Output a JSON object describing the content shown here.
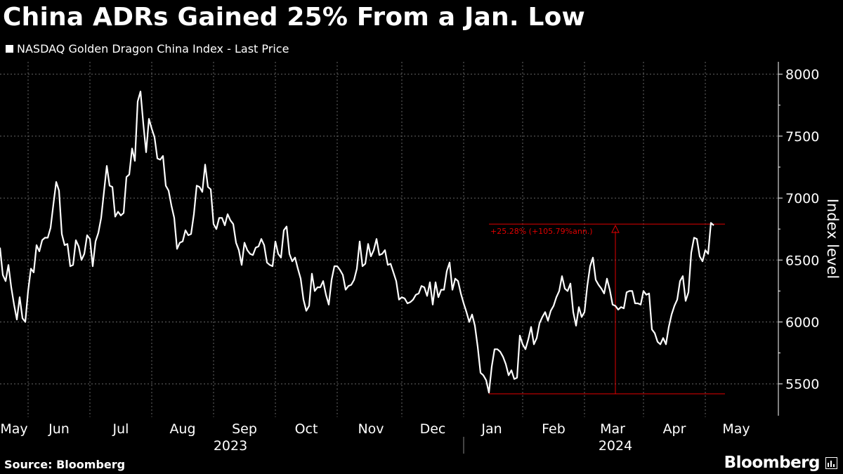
{
  "header": {
    "title": "China ADRs Gained 25% From a Jan. Low",
    "legend_label": "NASDAQ Golden Dragon China Index - Last Price"
  },
  "footer": {
    "source": "Source: Bloomberg",
    "brand": "Bloomberg"
  },
  "colors": {
    "background": "#000000",
    "line": "#ffffff",
    "annotation": "#e00000",
    "grid": "#666666"
  },
  "chart_data": {
    "type": "line",
    "title": "China ADRs Gained 25% From a Jan. Low",
    "ylabel": "Index level",
    "xlabel": "",
    "ylim": [
      5300,
      8100
    ],
    "xlim": [
      0,
      270
    ],
    "yticks": [
      5500,
      6000,
      6500,
      7000,
      7500,
      8000
    ],
    "grid": true,
    "legend": "top-left",
    "x_month_labels": [
      {
        "label": "May",
        "x": 5
      },
      {
        "label": "Jun",
        "x": 21
      },
      {
        "label": "Jul",
        "x": 43
      },
      {
        "label": "Aug",
        "x": 65
      },
      {
        "label": "Sep",
        "x": 87
      },
      {
        "label": "Oct",
        "x": 109
      },
      {
        "label": "Nov",
        "x": 132
      },
      {
        "label": "Dec",
        "x": 154
      },
      {
        "label": "Jan",
        "x": 175
      },
      {
        "label": "Feb",
        "x": 197
      },
      {
        "label": "Mar",
        "x": 218
      },
      {
        "label": "Apr",
        "x": 240
      },
      {
        "label": "May",
        "x": 262
      }
    ],
    "x_month_boundaries": [
      10,
      32,
      54,
      76,
      98,
      120,
      143,
      165,
      186,
      208,
      229,
      251
    ],
    "x_year_labels": [
      {
        "label": "2023",
        "x": 82
      },
      {
        "label": "2024",
        "x": 219
      }
    ],
    "x_year_boundary": 165,
    "series": [
      {
        "name": "NASDAQ Golden Dragon China Index - Last Price",
        "points": [
          [
            0,
            6600
          ],
          [
            1,
            6380
          ],
          [
            2,
            6330
          ],
          [
            3,
            6460
          ],
          [
            4,
            6280
          ],
          [
            5,
            6140
          ],
          [
            6,
            6020
          ],
          [
            7,
            6200
          ],
          [
            8,
            6030
          ],
          [
            9,
            6000
          ],
          [
            10,
            6250
          ],
          [
            11,
            6430
          ],
          [
            12,
            6400
          ],
          [
            13,
            6620
          ],
          [
            14,
            6570
          ],
          [
            15,
            6660
          ],
          [
            16,
            6680
          ],
          [
            17,
            6680
          ],
          [
            18,
            6760
          ],
          [
            19,
            6950
          ],
          [
            20,
            7130
          ],
          [
            21,
            7060
          ],
          [
            22,
            6710
          ],
          [
            23,
            6620
          ],
          [
            24,
            6630
          ],
          [
            25,
            6450
          ],
          [
            26,
            6460
          ],
          [
            27,
            6660
          ],
          [
            28,
            6610
          ],
          [
            29,
            6500
          ],
          [
            30,
            6550
          ],
          [
            31,
            6700
          ],
          [
            32,
            6670
          ],
          [
            33,
            6450
          ],
          [
            34,
            6650
          ],
          [
            35,
            6720
          ],
          [
            36,
            6840
          ],
          [
            37,
            7050
          ],
          [
            38,
            7260
          ],
          [
            39,
            7100
          ],
          [
            40,
            7090
          ],
          [
            41,
            6850
          ],
          [
            42,
            6890
          ],
          [
            43,
            6860
          ],
          [
            44,
            6880
          ],
          [
            45,
            7170
          ],
          [
            46,
            7190
          ],
          [
            47,
            7400
          ],
          [
            48,
            7300
          ],
          [
            49,
            7780
          ],
          [
            50,
            7860
          ],
          [
            51,
            7600
          ],
          [
            52,
            7370
          ],
          [
            53,
            7640
          ],
          [
            54,
            7560
          ],
          [
            55,
            7490
          ],
          [
            56,
            7320
          ],
          [
            57,
            7310
          ],
          [
            58,
            7340
          ],
          [
            59,
            7100
          ],
          [
            60,
            7060
          ],
          [
            61,
            6940
          ],
          [
            62,
            6840
          ],
          [
            63,
            6590
          ],
          [
            64,
            6640
          ],
          [
            65,
            6650
          ],
          [
            66,
            6740
          ],
          [
            67,
            6700
          ],
          [
            68,
            6710
          ],
          [
            69,
            6870
          ],
          [
            70,
            7100
          ],
          [
            71,
            7090
          ],
          [
            72,
            7050
          ],
          [
            73,
            7270
          ],
          [
            74,
            7090
          ],
          [
            75,
            7070
          ],
          [
            76,
            6790
          ],
          [
            77,
            6750
          ],
          [
            78,
            6840
          ],
          [
            79,
            6840
          ],
          [
            80,
            6780
          ],
          [
            81,
            6870
          ],
          [
            82,
            6820
          ],
          [
            83,
            6790
          ],
          [
            84,
            6640
          ],
          [
            85,
            6580
          ],
          [
            86,
            6460
          ],
          [
            87,
            6640
          ],
          [
            88,
            6580
          ],
          [
            89,
            6550
          ],
          [
            90,
            6540
          ],
          [
            91,
            6600
          ],
          [
            92,
            6610
          ],
          [
            93,
            6670
          ],
          [
            94,
            6620
          ],
          [
            95,
            6480
          ],
          [
            96,
            6460
          ],
          [
            97,
            6450
          ],
          [
            98,
            6650
          ],
          [
            99,
            6550
          ],
          [
            100,
            6520
          ],
          [
            101,
            6740
          ],
          [
            102,
            6770
          ],
          [
            103,
            6550
          ],
          [
            104,
            6490
          ],
          [
            105,
            6520
          ],
          [
            106,
            6430
          ],
          [
            107,
            6350
          ],
          [
            108,
            6180
          ],
          [
            109,
            6090
          ],
          [
            110,
            6130
          ],
          [
            111,
            6390
          ],
          [
            112,
            6250
          ],
          [
            113,
            6280
          ],
          [
            114,
            6280
          ],
          [
            115,
            6330
          ],
          [
            116,
            6220
          ],
          [
            117,
            6140
          ],
          [
            118,
            6340
          ],
          [
            119,
            6450
          ],
          [
            120,
            6450
          ],
          [
            121,
            6420
          ],
          [
            122,
            6380
          ],
          [
            123,
            6260
          ],
          [
            124,
            6290
          ],
          [
            125,
            6300
          ],
          [
            126,
            6340
          ],
          [
            127,
            6430
          ],
          [
            128,
            6650
          ],
          [
            129,
            6450
          ],
          [
            130,
            6470
          ],
          [
            131,
            6630
          ],
          [
            132,
            6530
          ],
          [
            133,
            6580
          ],
          [
            134,
            6670
          ],
          [
            135,
            6540
          ],
          [
            136,
            6550
          ],
          [
            137,
            6580
          ],
          [
            138,
            6460
          ],
          [
            139,
            6470
          ],
          [
            140,
            6400
          ],
          [
            141,
            6330
          ],
          [
            142,
            6180
          ],
          [
            143,
            6200
          ],
          [
            144,
            6190
          ],
          [
            145,
            6150
          ],
          [
            146,
            6160
          ],
          [
            147,
            6180
          ],
          [
            148,
            6220
          ],
          [
            149,
            6230
          ],
          [
            150,
            6290
          ],
          [
            151,
            6280
          ],
          [
            152,
            6210
          ],
          [
            153,
            6320
          ],
          [
            154,
            6140
          ],
          [
            155,
            6320
          ],
          [
            156,
            6200
          ],
          [
            157,
            6260
          ],
          [
            158,
            6260
          ],
          [
            159,
            6410
          ],
          [
            160,
            6480
          ],
          [
            161,
            6260
          ],
          [
            162,
            6350
          ],
          [
            163,
            6330
          ],
          [
            164,
            6230
          ],
          [
            165,
            6150
          ],
          [
            166,
            6080
          ],
          [
            167,
            6000
          ],
          [
            168,
            6060
          ],
          [
            169,
            5970
          ],
          [
            170,
            5800
          ],
          [
            171,
            5590
          ],
          [
            172,
            5570
          ],
          [
            173,
            5530
          ],
          [
            174,
            5430
          ],
          [
            175,
            5640
          ],
          [
            176,
            5780
          ],
          [
            177,
            5780
          ],
          [
            178,
            5760
          ],
          [
            179,
            5720
          ],
          [
            180,
            5660
          ],
          [
            181,
            5570
          ],
          [
            182,
            5610
          ],
          [
            183,
            5540
          ],
          [
            184,
            5550
          ],
          [
            185,
            5890
          ],
          [
            186,
            5820
          ],
          [
            187,
            5780
          ],
          [
            188,
            5860
          ],
          [
            189,
            5960
          ],
          [
            190,
            5820
          ],
          [
            191,
            5870
          ],
          [
            192,
            5990
          ],
          [
            193,
            6040
          ],
          [
            194,
            6080
          ],
          [
            195,
            6010
          ],
          [
            196,
            6090
          ],
          [
            197,
            6130
          ],
          [
            198,
            6200
          ],
          [
            199,
            6250
          ],
          [
            200,
            6370
          ],
          [
            201,
            6270
          ],
          [
            202,
            6250
          ],
          [
            203,
            6310
          ],
          [
            204,
            6080
          ],
          [
            205,
            5970
          ],
          [
            206,
            6120
          ],
          [
            207,
            6040
          ],
          [
            208,
            6080
          ],
          [
            209,
            6290
          ],
          [
            210,
            6450
          ],
          [
            211,
            6520
          ],
          [
            212,
            6340
          ],
          [
            213,
            6300
          ],
          [
            214,
            6270
          ],
          [
            215,
            6230
          ],
          [
            216,
            6350
          ],
          [
            217,
            6260
          ],
          [
            218,
            6140
          ],
          [
            219,
            6130
          ],
          [
            220,
            6100
          ],
          [
            221,
            6120
          ],
          [
            222,
            6110
          ],
          [
            223,
            6240
          ],
          [
            224,
            6250
          ],
          [
            225,
            6250
          ],
          [
            226,
            6150
          ],
          [
            227,
            6150
          ],
          [
            228,
            6140
          ],
          [
            229,
            6250
          ],
          [
            230,
            6220
          ],
          [
            231,
            6230
          ],
          [
            232,
            5940
          ],
          [
            233,
            5910
          ],
          [
            234,
            5840
          ],
          [
            235,
            5820
          ],
          [
            236,
            5870
          ],
          [
            237,
            5820
          ],
          [
            238,
            5960
          ],
          [
            239,
            6060
          ],
          [
            240,
            6130
          ],
          [
            241,
            6180
          ],
          [
            242,
            6330
          ],
          [
            243,
            6370
          ],
          [
            244,
            6170
          ],
          [
            245,
            6240
          ],
          [
            246,
            6560
          ],
          [
            247,
            6680
          ],
          [
            248,
            6670
          ],
          [
            249,
            6530
          ],
          [
            250,
            6490
          ],
          [
            251,
            6580
          ],
          [
            252,
            6550
          ],
          [
            253,
            6800
          ],
          [
            254,
            6780
          ]
        ]
      }
    ],
    "annotation": {
      "text": "+25.28% (+105.79%ann.)",
      "low": {
        "x": 174,
        "value": 5420
      },
      "high": {
        "x": 254,
        "value": 6790
      },
      "arrow_x": 219,
      "line_end_x": 258
    }
  }
}
